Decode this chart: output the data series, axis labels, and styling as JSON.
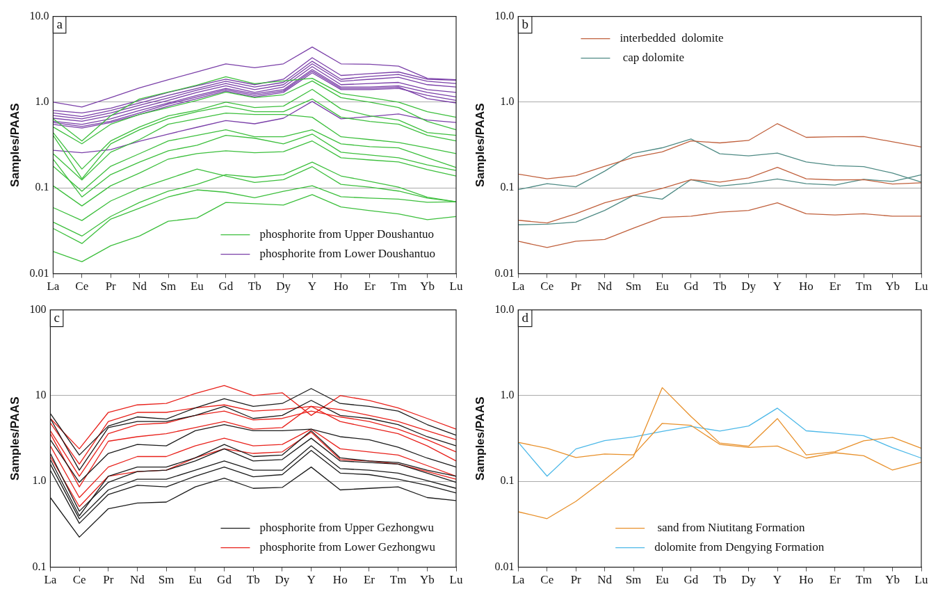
{
  "chart_data": [
    {
      "type": "line",
      "title": "a",
      "ylabel": "Samples/PAAS",
      "categories": [
        "La",
        "Ce",
        "Pr",
        "Nd",
        "Sm",
        "Eu",
        "Gd",
        "Tb",
        "Dy",
        "Y",
        "Ho",
        "Er",
        "Tm",
        "Yb",
        "Lu"
      ],
      "log": true,
      "grid": "y",
      "legend": "bottom right",
      "ylim": [
        0.01,
        10
      ],
      "yticks": [
        {
          "value": 0.01,
          "label": "0.01"
        },
        {
          "value": 0.1,
          "label": "0.1"
        },
        {
          "value": 1,
          "label": "1.0"
        },
        {
          "value": 10,
          "label": "10.0"
        }
      ],
      "series": [
        {
          "name": "phosphorite from Upper Doushantuo",
          "color": "#3cbf3c",
          "values": [
            0.0182,
            0.0138,
            0.0212,
            0.0275,
            0.0409,
            0.0447,
            0.0677,
            0.0655,
            0.0632,
            0.0837,
            0.06,
            0.0543,
            0.0497,
            0.0426,
            0.0464
          ]
        },
        {
          "color": "#3cbf3c",
          "values": [
            0.0337,
            0.0225,
            0.0433,
            0.058,
            0.0785,
            0.095,
            0.089,
            0.077,
            0.0915,
            0.106,
            0.079,
            0.076,
            0.074,
            0.068,
            0.069
          ]
        },
        {
          "color": "#3cbf3c",
          "values": [
            0.059,
            0.0417,
            0.0705,
            0.099,
            0.128,
            0.166,
            0.138,
            0.116,
            0.125,
            0.177,
            0.11,
            0.102,
            0.092,
            0.076,
            0.069
          ]
        },
        {
          "color": "#3cbf3c",
          "values": [
            0.04,
            0.0275,
            0.0465,
            0.0677,
            0.0916,
            0.11,
            0.143,
            0.133,
            0.143,
            0.2,
            0.138,
            0.119,
            0.102,
            0.078,
            0.069
          ]
        },
        {
          "color": "#3cbf3c",
          "values": [
            0.106,
            0.0617,
            0.106,
            0.149,
            0.217,
            0.251,
            0.271,
            0.257,
            0.265,
            0.353,
            0.225,
            0.212,
            0.201,
            0.164,
            0.138
          ]
        },
        {
          "color": "#3cbf3c",
          "values": [
            0.179,
            0.0916,
            0.179,
            0.251,
            0.353,
            0.41,
            0.476,
            0.395,
            0.395,
            0.476,
            0.327,
            0.303,
            0.293,
            0.225,
            0.173
          ]
        },
        {
          "color": "#3cbf3c",
          "values": [
            0.217,
            0.0786,
            0.143,
            0.2,
            0.271,
            0.315,
            0.41,
            0.38,
            0.327,
            0.425,
            0.261,
            0.242,
            0.225,
            0.186,
            0.16
          ]
        },
        {
          "color": "#3cbf3c",
          "values": [
            0.251,
            0.124,
            0.261,
            0.366,
            0.553,
            0.642,
            0.746,
            0.719,
            0.719,
            0.667,
            0.395,
            0.366,
            0.339,
            0.293,
            0.251
          ]
        },
        {
          "color": "#3cbf3c",
          "values": [
            0.41,
            0.128,
            0.327,
            0.476,
            0.642,
            0.775,
            0.9,
            0.775,
            0.775,
            1.09,
            0.667,
            0.596,
            0.553,
            0.41,
            0.353
          ]
        },
        {
          "color": "#3cbf3c",
          "values": [
            0.442,
            0.166,
            0.353,
            0.513,
            0.693,
            0.805,
            1.0,
            0.867,
            0.9,
            1.41,
            0.835,
            0.693,
            0.619,
            0.442,
            0.41
          ]
        },
        {
          "color": "#3cbf3c",
          "values": [
            0.513,
            0.327,
            0.553,
            0.719,
            0.867,
            1.05,
            1.31,
            1.13,
            1.22,
            1.77,
            1.13,
            1.0,
            0.867,
            0.596,
            0.476
          ]
        },
        {
          "color": "#3cbf3c",
          "values": [
            0.642,
            0.353,
            0.693,
            1.09,
            1.31,
            1.58,
            1.98,
            1.64,
            1.77,
            1.9,
            1.26,
            1.13,
            1.0,
            0.775,
            0.667
          ]
        },
        {
          "name": "phosphorite from Lower Doushantuo",
          "color": "#7a3fa8",
          "values": [
            1.0,
            0.88,
            1.13,
            1.47,
            1.83,
            2.25,
            2.8,
            2.52,
            2.8,
            4.4,
            2.8,
            2.77,
            2.63,
            1.9,
            1.83
          ]
        },
        {
          "color": "#7a3fa8",
          "values": [
            0.275,
            0.257,
            0.28,
            0.35,
            0.425,
            0.51,
            0.61,
            0.56,
            0.65,
            1.02,
            0.64,
            0.68,
            0.73,
            0.62,
            0.58
          ]
        },
        {
          "color": "#7a3fa8",
          "values": [
            0.8,
            0.75,
            0.85,
            1.05,
            1.3,
            1.55,
            1.85,
            1.6,
            1.85,
            3.3,
            2.05,
            2.15,
            2.25,
            1.85,
            1.8
          ]
        },
        {
          "color": "#7a3fa8",
          "values": [
            0.75,
            0.68,
            0.8,
            0.98,
            1.2,
            1.45,
            1.75,
            1.5,
            1.7,
            3.0,
            1.85,
            2.0,
            2.1,
            1.75,
            1.65
          ]
        },
        {
          "color": "#7a3fa8",
          "values": [
            0.7,
            0.64,
            0.75,
            0.92,
            1.12,
            1.38,
            1.65,
            1.4,
            1.6,
            2.8,
            1.75,
            1.85,
            1.95,
            1.6,
            1.5
          ]
        },
        {
          "color": "#7a3fa8",
          "values": [
            0.65,
            0.6,
            0.7,
            0.86,
            1.05,
            1.3,
            1.55,
            1.3,
            1.5,
            2.6,
            1.6,
            1.65,
            1.7,
            1.4,
            1.3
          ]
        },
        {
          "color": "#7a3fa8",
          "values": [
            0.6,
            0.55,
            0.64,
            0.8,
            0.98,
            1.2,
            1.45,
            1.25,
            1.4,
            2.4,
            1.5,
            1.5,
            1.55,
            1.3,
            1.15
          ]
        },
        {
          "color": "#7a3fa8",
          "values": [
            0.55,
            0.5,
            0.58,
            0.72,
            0.9,
            1.1,
            1.35,
            1.15,
            1.3,
            2.2,
            1.4,
            1.4,
            1.45,
            1.2,
            1.05
          ]
        },
        {
          "color": "#7a3fa8",
          "values": [
            0.58,
            0.52,
            0.6,
            0.75,
            0.95,
            1.15,
            1.4,
            1.2,
            1.35,
            2.3,
            1.45,
            1.45,
            1.5,
            1.1,
            0.98
          ]
        }
      ]
    },
    {
      "type": "line",
      "title": "b",
      "ylabel": "Samples/PAAS",
      "categories": [
        "La",
        "Ce",
        "Pr",
        "Nd",
        "Sm",
        "Eu",
        "Gd",
        "Tb",
        "Dy",
        "Y",
        "Ho",
        "Er",
        "Tm",
        "Yb",
        "Lu"
      ],
      "log": true,
      "grid": "y",
      "legend": "top left",
      "ylim": [
        0.01,
        10
      ],
      "yticks": [
        {
          "value": 0.01,
          "label": "0.01"
        },
        {
          "value": 0.1,
          "label": "0.1"
        },
        {
          "value": 1,
          "label": "1.0"
        },
        {
          "value": 10,
          "label": "10.0"
        }
      ],
      "series": [
        {
          "name": "interbedded  dolomite",
          "color": "#c0603c",
          "values": [
            0.145,
            0.128,
            0.139,
            0.179,
            0.227,
            0.263,
            0.353,
            0.335,
            0.358,
            0.562,
            0.389,
            0.395,
            0.398,
            0.345,
            0.3
          ]
        },
        {
          "color": "#c0603c",
          "values": [
            0.042,
            0.039,
            0.05,
            0.067,
            0.082,
            0.099,
            0.125,
            0.117,
            0.131,
            0.174,
            0.128,
            0.124,
            0.125,
            0.111,
            0.115
          ]
        },
        {
          "color": "#c0603c",
          "values": [
            0.0239,
            0.0202,
            0.0239,
            0.0251,
            0.034,
            0.0454,
            0.0468,
            0.0522,
            0.0546,
            0.0672,
            0.05,
            0.0485,
            0.05,
            0.0468,
            0.0468
          ]
        },
        {
          "name": " cap dolomite",
          "color": "#4e8a84",
          "values": [
            0.0957,
            0.112,
            0.103,
            0.157,
            0.253,
            0.294,
            0.372,
            0.25,
            0.237,
            0.255,
            0.201,
            0.182,
            0.177,
            0.149,
            0.117
          ]
        },
        {
          "color": "#4e8a84",
          "values": [
            0.0372,
            0.0378,
            0.04,
            0.0546,
            0.082,
            0.074,
            0.125,
            0.105,
            0.113,
            0.127,
            0.112,
            0.108,
            0.126,
            0.119,
            0.142
          ]
        }
      ]
    },
    {
      "type": "line",
      "title": "c",
      "ylabel": "Samples/PAAS",
      "categories": [
        "La",
        "Ce",
        "Pr",
        "Nd",
        "Sm",
        "Eu",
        "Gd",
        "Tb",
        "Dy",
        "Y",
        "Ho",
        "Er",
        "Tm",
        "Yb",
        "Lu"
      ],
      "log": true,
      "grid": "y",
      "legend": "bottom right",
      "ylim": [
        0.1,
        100
      ],
      "yticks": [
        {
          "value": 0.1,
          "label": "0.1"
        },
        {
          "value": 1,
          "label": "1.0"
        },
        {
          "value": 10,
          "label": "10"
        },
        {
          "value": 100,
          "label": "100"
        }
      ],
      "series": [
        {
          "name": "phosphorite from Upper Gezhongwu",
          "color": "#1a1a1a",
          "values": [
            6.2,
            2.03,
            4.42,
            5.65,
            5.33,
            7.2,
            9.2,
            7.5,
            8.1,
            12.1,
            8.1,
            7.5,
            6.6,
            4.6,
            3.46
          ]
        },
        {
          "color": "#1a1a1a",
          "values": [
            0.648,
            0.224,
            0.48,
            0.56,
            0.574,
            0.863,
            1.09,
            0.83,
            0.85,
            1.47,
            0.796,
            0.83,
            0.863,
            0.648,
            0.598
          ]
        },
        {
          "color": "#1a1a1a",
          "values": [
            1.35,
            0.324,
            0.704,
            0.9,
            0.863,
            1.15,
            1.47,
            1.13,
            1.2,
            2.3,
            1.25,
            1.2,
            1.06,
            0.9,
            0.733
          ]
        },
        {
          "color": "#1a1a1a",
          "values": [
            1.59,
            0.366,
            0.796,
            1.06,
            1.06,
            1.35,
            1.73,
            1.35,
            1.35,
            2.6,
            1.41,
            1.35,
            1.25,
            1.02,
            0.83
          ]
        },
        {
          "color": "#1a1a1a",
          "values": [
            2.12,
            0.449,
            0.976,
            1.3,
            1.35,
            1.73,
            2.4,
            1.73,
            1.8,
            3.19,
            1.73,
            1.66,
            1.59,
            1.25,
            0.976
          ]
        },
        {
          "color": "#1a1a1a",
          "values": [
            3.06,
            0.976,
            2.12,
            2.7,
            2.6,
            3.9,
            4.6,
            3.9,
            3.9,
            4.07,
            3.32,
            3.06,
            2.5,
            1.87,
            1.47
          ]
        },
        {
          "color": "#1a1a1a",
          "values": [
            5.42,
            1.35,
            4.24,
            4.99,
            4.99,
            5.88,
            7.5,
            5.42,
            5.88,
            8.8,
            5.88,
            5.42,
            4.6,
            3.32,
            2.6
          ]
        },
        {
          "color": "#1a1a1a",
          "values": [
            1.8,
            0.397,
            1.15,
            1.47,
            1.47,
            1.88,
            2.7,
            1.95,
            2.03,
            3.9,
            1.88,
            1.73,
            1.66,
            1.35,
            1.15
          ]
        },
        {
          "name": "phosphorite from Lower Gezhongwu",
          "color": "#e8201a",
          "values": [
            5.42,
            2.4,
            6.38,
            7.8,
            8.1,
            10.6,
            13.1,
            10.0,
            10.8,
            5.88,
            10.0,
            8.8,
            7.2,
            5.42,
            4.07
          ]
        },
        {
          "color": "#e8201a",
          "values": [
            4.8,
            1.59,
            5.0,
            6.38,
            6.38,
            7.2,
            7.8,
            6.6,
            6.9,
            7.5,
            6.9,
            5.88,
            5.0,
            3.9,
            3.06
          ]
        },
        {
          "color": "#e8201a",
          "values": [
            3.9,
            1.15,
            3.6,
            4.6,
            4.8,
            5.88,
            6.6,
            5.2,
            5.42,
            6.6,
            5.65,
            5.0,
            4.07,
            3.06,
            2.21
          ]
        },
        {
          "color": "#e8201a",
          "values": [
            2.6,
            0.648,
            1.47,
            1.95,
            1.95,
            2.6,
            3.19,
            2.6,
            2.7,
            4.07,
            2.4,
            2.21,
            2.03,
            1.53,
            1.15
          ]
        },
        {
          "color": "#e8201a",
          "values": [
            1.95,
            0.508,
            1.15,
            1.3,
            1.35,
            1.88,
            2.4,
            2.12,
            2.21,
            3.75,
            1.8,
            1.73,
            1.59,
            1.3,
            1.06
          ]
        },
        {
          "color": "#e8201a",
          "values": [
            3.6,
            0.863,
            2.94,
            3.32,
            3.6,
            4.24,
            4.99,
            4.07,
            4.24,
            7.5,
            4.99,
            4.24,
            3.6,
            2.6,
            1.73
          ]
        }
      ]
    },
    {
      "type": "line",
      "title": "d",
      "ylabel": "Samples/PAAS",
      "categories": [
        "La",
        "Ce",
        "Pr",
        "Nd",
        "Sm",
        "Eu",
        "Gd",
        "Tb",
        "Dy",
        "Y",
        "Ho",
        "Er",
        "Tm",
        "Yb",
        "Lu"
      ],
      "log": true,
      "grid": "y",
      "legend": "bottom",
      "ylim": [
        0.01,
        10
      ],
      "yticks": [
        {
          "value": 0.01,
          "label": "0.01"
        },
        {
          "value": 0.1,
          "label": "0.1"
        },
        {
          "value": 1,
          "label": "1.0"
        },
        {
          "value": 10,
          "label": "10.0"
        }
      ],
      "series": [
        {
          "name": " sand from Niutitang Formation",
          "color": "#e8902a",
          "values": [
            0.0442,
            0.0368,
            0.0585,
            0.105,
            0.194,
            1.24,
            0.571,
            0.28,
            0.257,
            0.54,
            0.204,
            0.222,
            0.297,
            0.326,
            0.243
          ]
        },
        {
          "color": "#e8902a",
          "values": [
            0.285,
            0.243,
            0.19,
            0.209,
            0.204,
            0.475,
            0.45,
            0.27,
            0.249,
            0.259,
            0.187,
            0.216,
            0.199,
            0.1355,
            0.167
          ]
        },
        {
          "name": "dolomite from Dengying Formation",
          "color": "#4cb8e8",
          "values": [
            0.285,
            0.115,
            0.239,
            0.299,
            0.329,
            0.383,
            0.439,
            0.386,
            0.442,
            0.715,
            0.389,
            0.365,
            0.34,
            0.247,
            0.187
          ]
        }
      ]
    }
  ]
}
